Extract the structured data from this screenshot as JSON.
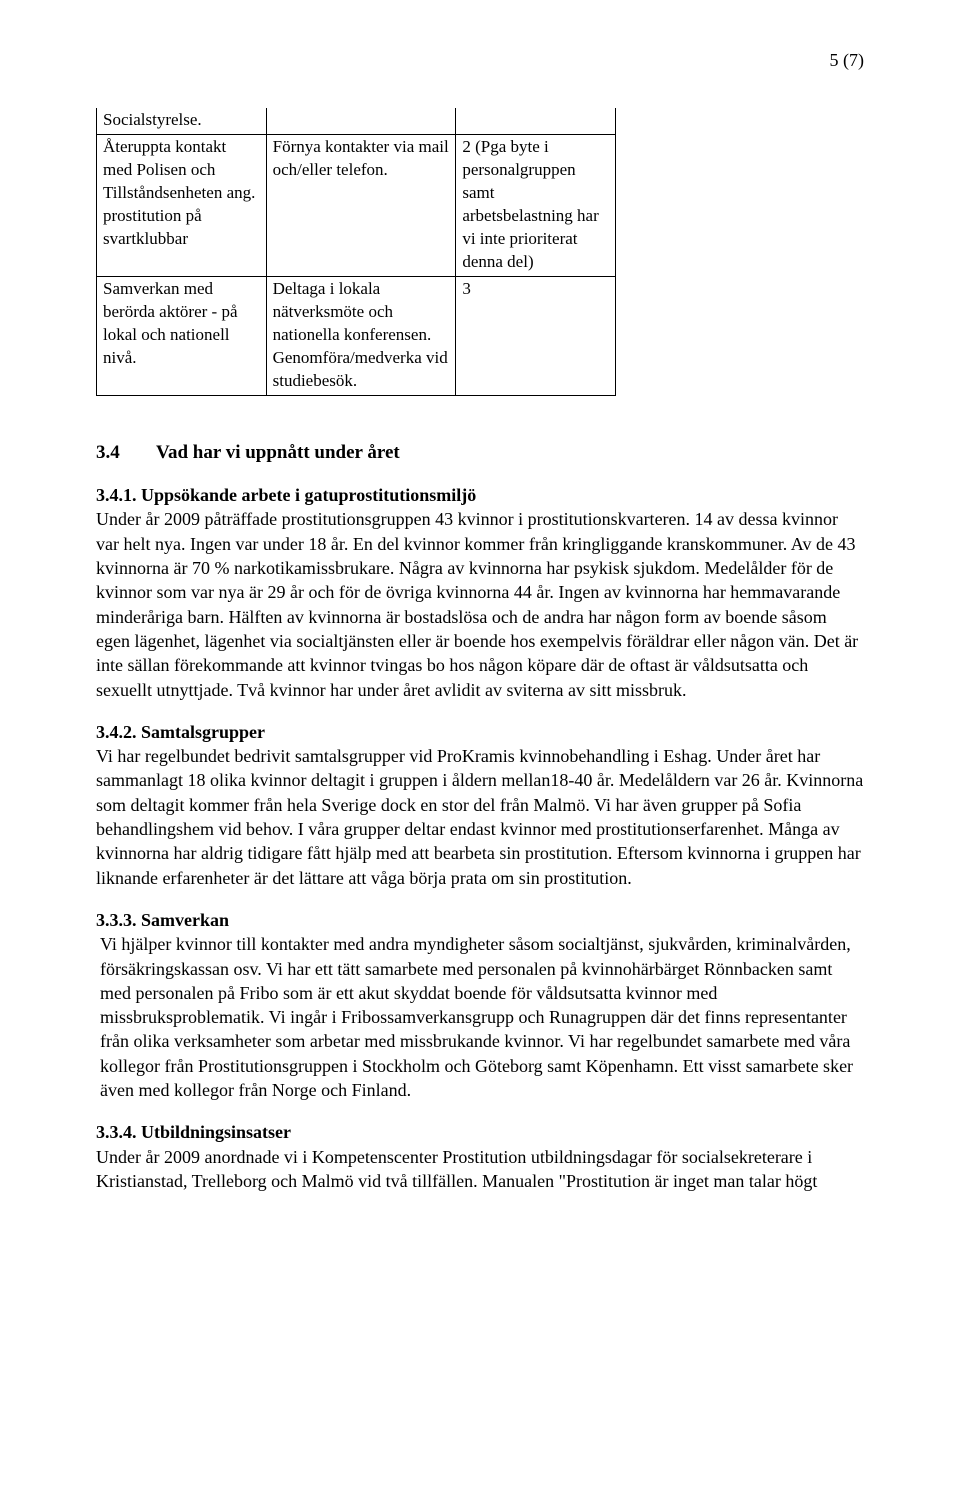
{
  "page_number": "5 (7)",
  "table": {
    "rows": [
      {
        "c1": "Socialstyrelse.",
        "c2": "",
        "c3": ""
      },
      {
        "c1": "Återuppta kontakt med Polisen och Tillståndsenheten ang. prostitution på svartklubbar",
        "c2": "Förnya kontakter via mail och/eller telefon.",
        "c3": "2 (Pga byte i personalgruppen samt arbetsbelastning har vi inte prioriterat denna del)"
      },
      {
        "c1": "Samverkan med berörda aktörer - på lokal och nationell nivå.",
        "c2": "Deltaga i lokala nätverksmöte och nationella konferensen. Genomföra/medverka vid studiebesök.",
        "c3": "3"
      }
    ]
  },
  "section_3_4": {
    "number": "3.4",
    "title": "Vad har vi uppnått under året"
  },
  "s341": {
    "heading": "3.4.1. Uppsökande arbete i gatuprostitutionsmiljö",
    "body": "Under år 2009 påträffade prostitutionsgruppen 43 kvinnor i prostitutionskvarteren. 14 av dessa kvinnor var helt nya. Ingen var under 18 år. En del kvinnor kommer från kringliggande kranskommuner. Av de 43 kvinnorna är 70 % narkotikamissbrukare. Några av kvinnorna har psykisk sjukdom. Medelålder för de kvinnor som var nya är 29 år och för de övriga kvinnorna 44 år. Ingen av kvinnorna har hemmavarande minderåriga barn. Hälften av kvinnorna är bostadslösa och de andra har någon form av boende såsom egen lägenhet, lägenhet via socialtjänsten eller är boende hos exempelvis föräldrar eller någon vän. Det är inte sällan förekommande att kvinnor tvingas bo hos någon köpare där de oftast är våldsutsatta och sexuellt utnyttjade. Två kvinnor har under året avlidit av sviterna av sitt missbruk."
  },
  "s342": {
    "heading": "3.4.2. Samtalsgrupper",
    "body": "Vi har regelbundet bedrivit samtalsgrupper vid ProKramis kvinnobehandling i Eshag. Under året har sammanlagt 18 olika kvinnor deltagit i gruppen i åldern mellan18-40 år. Medelåldern var 26 år. Kvinnorna som deltagit kommer från hela Sverige dock en stor del från Malmö. Vi har även grupper på Sofia behandlingshem vid behov. I våra grupper deltar endast kvinnor med prostitutionserfarenhet. Många av kvinnorna har aldrig tidigare fått hjälp med att bearbeta sin prostitution. Eftersom kvinnorna i gruppen har liknande erfarenheter är det lättare att våga börja prata om sin prostitution."
  },
  "s333": {
    "heading": "3.3.3. Samverkan",
    "body": "Vi hjälper kvinnor till kontakter med andra myndigheter såsom socialtjänst, sjukvården, kriminalvården, försäkringskassan osv. Vi har ett tätt samarbete med personalen på kvinnohärbärget Rönnbacken samt med personalen på Fribo som är ett akut skyddat boende för våldsutsatta kvinnor med missbruksproblematik. Vi ingår i Fribossamverkansgrupp och Runagruppen där det finns representanter från olika verksamheter som arbetar med missbrukande kvinnor. Vi har regelbundet samarbete med våra kollegor från Prostitutionsgruppen i Stockholm och Göteborg samt Köpenhamn. Ett visst samarbete sker även med kollegor från Norge och Finland."
  },
  "s334": {
    "heading": "3.3.4. Utbildningsinsatser",
    "body": "Under år 2009 anordnade vi i Kompetenscenter Prostitution utbildningsdagar för socialsekreterare i Kristianstad, Trelleborg och Malmö vid två tillfällen. Manualen \"Prostitution är inget man talar högt"
  }
}
